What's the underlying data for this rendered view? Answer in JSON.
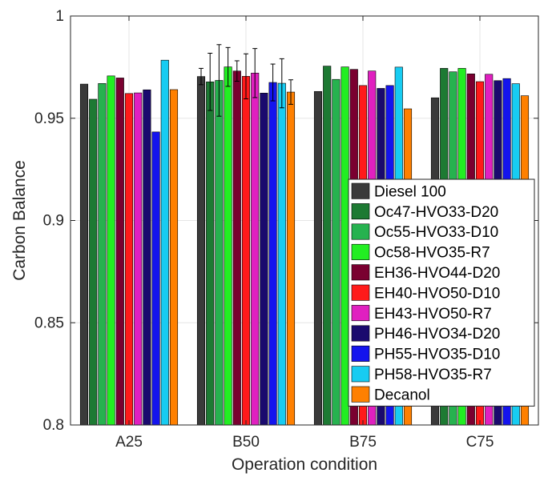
{
  "chart_data": {
    "type": "bar",
    "xlabel": "Operation condition",
    "ylabel": "Carbon Balance",
    "ylim": [
      0.8,
      1.0
    ],
    "yticks": [
      "0.8",
      "0.85",
      "0.9",
      "0.95",
      "1"
    ],
    "grid": true,
    "legend_position": "inside-right",
    "categories": [
      "A25",
      "B50",
      "B75",
      "C75"
    ],
    "series": [
      {
        "name": "Diesel 100",
        "color": "#3a3a3a",
        "values": [
          0.9667,
          0.9704,
          0.9631,
          0.96
        ],
        "errors": [
          null,
          0.004,
          null,
          null
        ]
      },
      {
        "name": "Oc47-HVO33-D20",
        "color": "#1d7a33",
        "values": [
          0.9593,
          0.9678,
          0.9755,
          0.9744
        ],
        "errors": [
          null,
          0.014,
          null,
          null
        ]
      },
      {
        "name": "Oc55-HVO33-D10",
        "color": "#26b24f",
        "values": [
          0.967,
          0.9685,
          0.969,
          0.9727
        ],
        "errors": [
          null,
          0.0175,
          null,
          null
        ]
      },
      {
        "name": "Oc58-HVO35-R7",
        "color": "#22ee22",
        "values": [
          0.9707,
          0.9751,
          0.9751,
          0.9744
        ],
        "errors": [
          null,
          0.0095,
          null,
          null
        ]
      },
      {
        "name": "EH36-HVO44-D20",
        "color": "#7a0030",
        "values": [
          0.9697,
          0.9731,
          0.9739,
          0.9717
        ],
        "errors": [
          null,
          0.005,
          null,
          null
        ]
      },
      {
        "name": "EH40-HVO50-D10",
        "color": "#ff1a1a",
        "values": [
          0.9621,
          0.9705,
          0.966,
          0.9679
        ],
        "errors": [
          null,
          0.011,
          null,
          null
        ]
      },
      {
        "name": "EH43-HVO50-R7",
        "color": "#e020c0",
        "values": [
          0.9624,
          0.9721,
          0.9731,
          0.9715
        ],
        "errors": [
          null,
          0.012,
          null,
          null
        ]
      },
      {
        "name": "PH46-HVO34-D20",
        "color": "#1a0a6e",
        "values": [
          0.9639,
          0.9623,
          0.9646,
          0.9684
        ],
        "errors": [
          null,
          null,
          null,
          null
        ]
      },
      {
        "name": "PH55-HVO35-D10",
        "color": "#1414ee",
        "values": [
          0.9433,
          0.9675,
          0.966,
          0.9694
        ],
        "errors": [
          null,
          0.009,
          null,
          null
        ]
      },
      {
        "name": "PH58-HVO35-R7",
        "color": "#17ccf2",
        "values": [
          0.9784,
          0.9671,
          0.975,
          0.9669
        ],
        "errors": [
          null,
          0.012,
          null,
          null
        ]
      },
      {
        "name": "Decanol",
        "color": "#ff8000",
        "values": [
          0.964,
          0.9628,
          0.9546,
          0.961
        ],
        "errors": [
          null,
          0.006,
          null,
          null
        ]
      }
    ]
  }
}
